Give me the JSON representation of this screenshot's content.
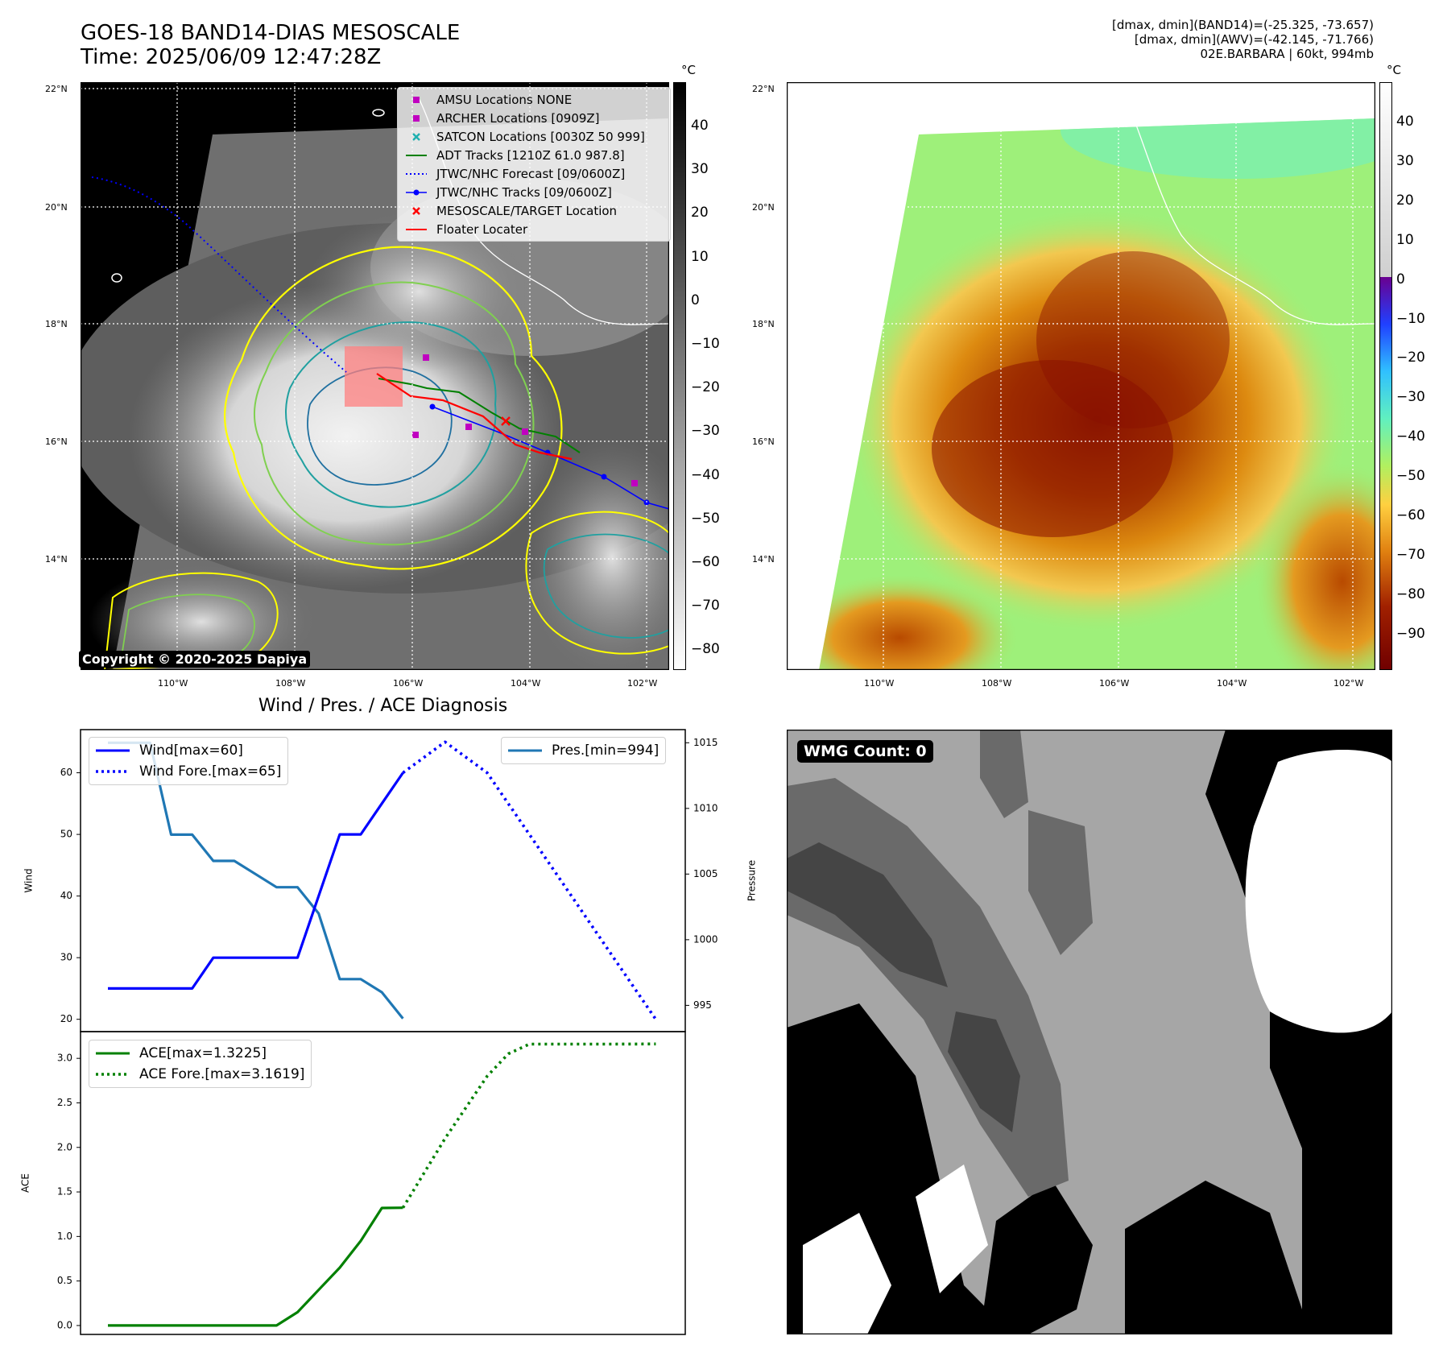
{
  "header": {
    "title_line1": "GOES-18 BAND14-DIAS MESOSCALE",
    "title_line2": "Time: 2025/06/09 12:47:28Z",
    "info_line1": "[dmax, dmin](BAND14)=(-25.325, -73.657)",
    "info_line2": "[dmax, dmin](AWV)=(-42.145, -71.766)",
    "info_line3": "02E.BARBARA | 60kt, 994mb"
  },
  "ir_panel": {
    "lat_labels": [
      "22°N",
      "20°N",
      "18°N",
      "16°N",
      "14°N"
    ],
    "lon_labels": [
      "110°W",
      "108°W",
      "106°W",
      "104°W",
      "102°W"
    ],
    "colorbar_unit": "°C",
    "colorbar_ticks": [
      "40",
      "30",
      "20",
      "10",
      "0",
      "−10",
      "−20",
      "−30",
      "−40",
      "−50",
      "−60",
      "−70",
      "−80"
    ],
    "copyright": "Copyright © 2020-2025 Dapiya",
    "legend": [
      {
        "label": "AMSU Locations NONE",
        "marker": "square",
        "color": "#c000c0"
      },
      {
        "label": "ARCHER Locations [0909Z]",
        "marker": "square",
        "color": "#c000c0"
      },
      {
        "label": "SATCON Locations [0030Z 50 999]",
        "marker": "x",
        "color": "#20b0b0"
      },
      {
        "label": "ADT Tracks [1210Z 61.0 987.8]",
        "marker": "line",
        "color": "#008000"
      },
      {
        "label": "JTWC/NHC Forecast [09/0600Z]",
        "marker": "dotted",
        "color": "#0000ff"
      },
      {
        "label": "JTWC/NHC Tracks [09/0600Z]",
        "marker": "line-dot",
        "color": "#0000ff"
      },
      {
        "label": "MESOSCALE/TARGET Location",
        "marker": "x",
        "color": "#ff0000"
      },
      {
        "label": "Floater Locater",
        "marker": "line",
        "color": "#ff0000"
      }
    ]
  },
  "awv_panel": {
    "lat_labels": [
      "22°N",
      "20°N",
      "18°N",
      "16°N",
      "14°N"
    ],
    "lon_labels": [
      "110°W",
      "108°W",
      "106°W",
      "104°W",
      "102°W"
    ],
    "colorbar_unit": "°C",
    "colorbar_ticks": [
      "40",
      "30",
      "20",
      "10",
      "0",
      "−10",
      "−20",
      "−30",
      "−40",
      "−50",
      "−60",
      "−70",
      "−80",
      "−90"
    ]
  },
  "wmg_panel": {
    "badge": "WMG Count: 0"
  },
  "chart_data": [
    {
      "type": "line",
      "title": "Wind / Pres. / ACE Diagnosis",
      "ylabel": "Wind",
      "ylabel_right": "Pressure",
      "ylim": [
        18,
        67
      ],
      "ylim_right": [
        993.0,
        1016.0
      ],
      "yticks": [
        20,
        30,
        40,
        50,
        60
      ],
      "yticks_right": [
        995,
        1000,
        1005,
        1010,
        1015
      ],
      "series": [
        {
          "name": "Wind[max=60]",
          "style": "solid",
          "color": "#0000ff",
          "axis": "left",
          "x": [
            0,
            3,
            4,
            5,
            6,
            7,
            8,
            9,
            10,
            11,
            12,
            13,
            14
          ],
          "values": [
            25,
            25,
            25,
            30,
            30,
            30,
            30,
            30,
            40,
            50,
            50,
            55,
            60
          ]
        },
        {
          "name": "Wind Fore.[max=65]",
          "style": "dotted",
          "color": "#0000ff",
          "axis": "left",
          "x": [
            14,
            16,
            18,
            20,
            22,
            24,
            26
          ],
          "values": [
            60,
            65,
            60,
            50,
            40,
            30,
            20
          ]
        },
        {
          "name": "Pres.[min=994]",
          "style": "solid",
          "color": "#1f77b4",
          "axis": "right",
          "x": [
            0,
            1,
            2,
            3,
            4,
            5,
            6,
            7,
            8,
            9,
            10,
            11,
            12,
            13,
            14
          ],
          "values": [
            1015,
            1015,
            1015,
            1008,
            1008,
            1006,
            1006,
            1005,
            1004,
            1004,
            1002,
            997,
            997,
            996,
            994
          ]
        }
      ]
    },
    {
      "type": "line",
      "ylabel": "ACE",
      "ylim": [
        -0.1,
        3.3
      ],
      "yticks": [
        0.0,
        0.5,
        1.0,
        1.5,
        2.0,
        2.5,
        3.0
      ],
      "series": [
        {
          "name": "ACE[max=1.3225]",
          "style": "solid",
          "color": "#008000",
          "x": [
            0,
            2,
            4,
            6,
            8,
            9,
            10,
            11,
            12,
            13,
            14
          ],
          "values": [
            0.0,
            0.0,
            0.0,
            0.0,
            0.0,
            0.15,
            0.4,
            0.65,
            0.95,
            1.32,
            1.3225
          ]
        },
        {
          "name": "ACE Fore.[max=3.1619]",
          "style": "dotted",
          "color": "#008000",
          "x": [
            14,
            16,
            18,
            19,
            20,
            22,
            24,
            26
          ],
          "values": [
            1.3225,
            2.1,
            2.8,
            3.05,
            3.16,
            3.16,
            3.16,
            3.1619
          ]
        }
      ]
    }
  ]
}
